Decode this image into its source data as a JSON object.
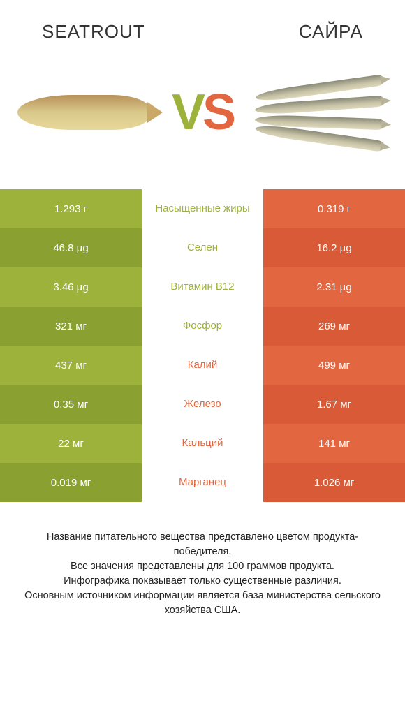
{
  "colors": {
    "left": "#9cb23a",
    "left_alt": "#8aa030",
    "right": "#e2663f",
    "right_alt": "#d85a36",
    "bg": "#ffffff",
    "text": "#333333"
  },
  "header": {
    "left_title": "SEATROUT",
    "right_title": "САЙРА"
  },
  "vs_text": "VS",
  "rows": [
    {
      "left": "1.293 г",
      "label": "Насыщенные жиры",
      "right": "0.319 г",
      "winner": "left"
    },
    {
      "left": "46.8 µg",
      "label": "Селен",
      "right": "16.2 µg",
      "winner": "left"
    },
    {
      "left": "3.46 µg",
      "label": "Витамин B12",
      "right": "2.31 µg",
      "winner": "left"
    },
    {
      "left": "321 мг",
      "label": "Фосфор",
      "right": "269 мг",
      "winner": "left"
    },
    {
      "left": "437 мг",
      "label": "Калий",
      "right": "499 мг",
      "winner": "right"
    },
    {
      "left": "0.35 мг",
      "label": "Железо",
      "right": "1.67 мг",
      "winner": "right"
    },
    {
      "left": "22 мг",
      "label": "Кальций",
      "right": "141 мг",
      "winner": "right"
    },
    {
      "left": "0.019 мг",
      "label": "Марганец",
      "right": "1.026 мг",
      "winner": "right"
    }
  ],
  "footer_lines": [
    "Название питательного вещества представлено цветом продукта-победителя.",
    "Все значения представлены для 100 граммов продукта.",
    "Инфографика показывает только существенные различия.",
    "Основным источником информации является база министерства сельского хозяйства США."
  ]
}
